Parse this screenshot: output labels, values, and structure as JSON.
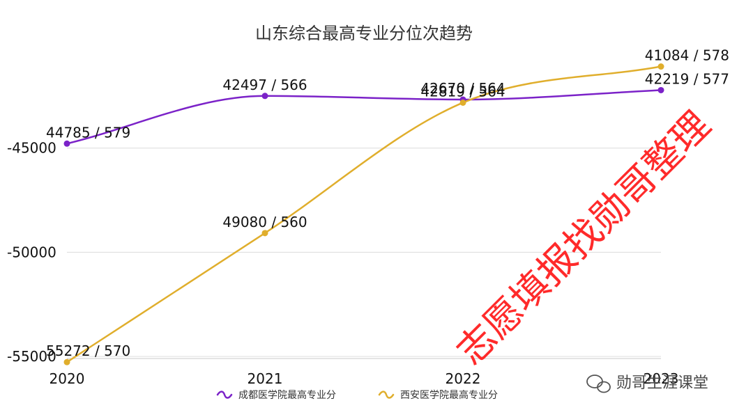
{
  "chart_data": {
    "type": "line",
    "title": "山东综合最高专业分位次趋势",
    "categories": [
      "2020",
      "2021",
      "2022",
      "2023"
    ],
    "ylim": [
      -55000,
      -41000
    ],
    "yticks": [
      -45000,
      -50000,
      -55000
    ],
    "grid": true,
    "legend_position": "bottom-center",
    "series": [
      {
        "name": "成都医学院最高专业分",
        "color": "#7b22c8",
        "values": [
          -44785,
          -42497,
          -42670,
          -42219
        ],
        "labels": [
          "44785 / 579",
          "42497 / 566",
          "42670 / 564",
          "42219 / 577"
        ]
      },
      {
        "name": "西安医学院最高专业分",
        "color": "#e0ae2c",
        "values": [
          -55272,
          -49080,
          -42819,
          -41084
        ],
        "labels": [
          "55272 / 570",
          "49080 / 560",
          "42819 / 564",
          "41084 / 578"
        ]
      }
    ]
  },
  "watermark": "志愿填报找勋哥整理",
  "brand": "勋哥生涯课堂"
}
